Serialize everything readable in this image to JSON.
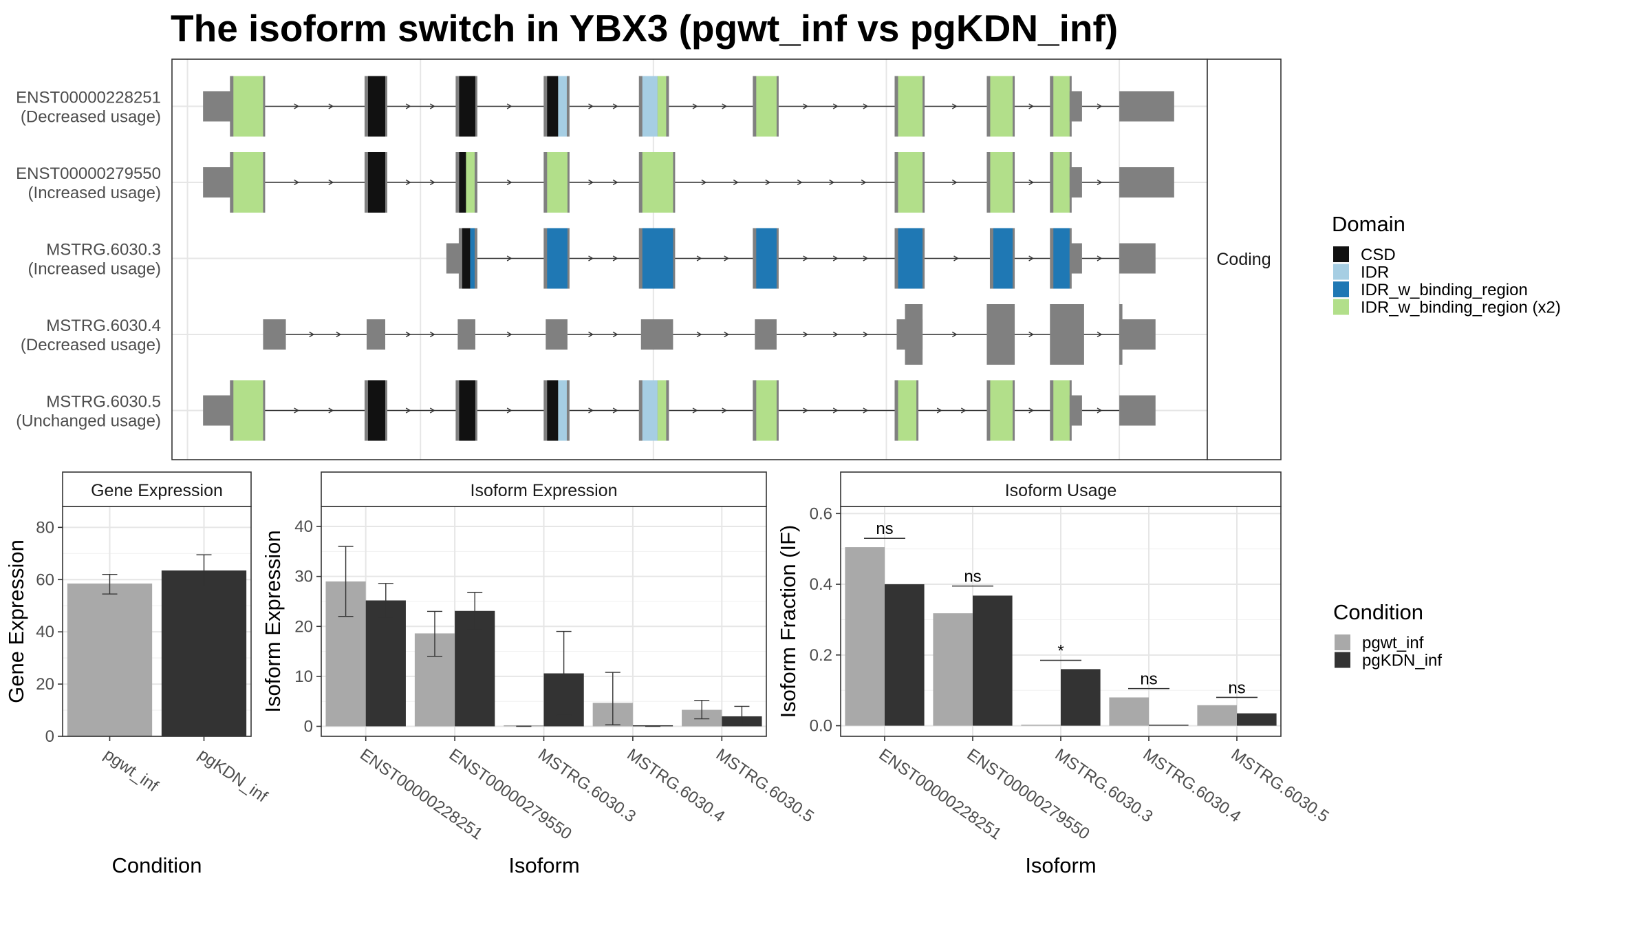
{
  "title": "The isoform switch in YBX3 (pgwt_inf vs pgKDN_inf)",
  "colors": {
    "exon_grey": "#808080",
    "CSD": "#111111",
    "IDR": "#a6cee3",
    "IDR_w_binding_region": "#1f78b4",
    "IDR_w_binding_region (x2)": "#b2df8a",
    "pgwt_inf": "#a9a9a9",
    "pgKDN_inf": "#333333"
  },
  "structure": {
    "facet_label": "Coding",
    "x_range": [
      0,
      1000
    ],
    "isoforms": [
      {
        "name": "ENST00000228251",
        "usage": "(Decreased usage)",
        "segments": [
          {
            "x0": 30,
            "x1": 58,
            "type": "utr"
          },
          {
            "x0": 58,
            "x1": 88,
            "type": "cds",
            "domain": "IDR_w_binding_region (x2)"
          },
          {
            "x0": 188,
            "x1": 206,
            "type": "cds",
            "domain": "CSD"
          },
          {
            "x0": 276,
            "x1": 293,
            "type": "cds",
            "domain": "CSD"
          },
          {
            "x0": 361,
            "x1": 382,
            "type": "cds",
            "domain": "CSD",
            "split": [
              373,
              "IDR"
            ]
          },
          {
            "x0": 453,
            "x1": 478,
            "type": "cds",
            "domain": "IDR",
            "split": [
              469,
              "IDR_w_binding_region (x2)"
            ]
          },
          {
            "x0": 563,
            "x1": 584,
            "type": "cds",
            "domain": "IDR_w_binding_region (x2)"
          },
          {
            "x0": 700,
            "x1": 725,
            "type": "cds",
            "domain": "IDR_w_binding_region (x2)"
          },
          {
            "x0": 789,
            "x1": 812,
            "type": "cds",
            "domain": "IDR_w_binding_region (x2)"
          },
          {
            "x0": 850,
            "x1": 867,
            "type": "cds",
            "domain": "IDR_w_binding_region (x2)"
          },
          {
            "x0": 867,
            "x1": 879,
            "type": "utr"
          },
          {
            "x0": 915,
            "x1": 968,
            "type": "utr"
          }
        ]
      },
      {
        "name": "ENST00000279550",
        "usage": "(Increased usage)",
        "segments": [
          {
            "x0": 30,
            "x1": 58,
            "type": "utr"
          },
          {
            "x0": 58,
            "x1": 88,
            "type": "cds",
            "domain": "IDR_w_binding_region (x2)"
          },
          {
            "x0": 188,
            "x1": 206,
            "type": "cds",
            "domain": "CSD"
          },
          {
            "x0": 276,
            "x1": 293,
            "type": "cds",
            "domain": "CSD",
            "split": [
              284,
              "IDR_w_binding_region (x2)"
            ]
          },
          {
            "x0": 361,
            "x1": 382,
            "type": "cds",
            "domain": "IDR_w_binding_region (x2)"
          },
          {
            "x0": 453,
            "x1": 484,
            "type": "cds",
            "domain": "IDR_w_binding_region (x2)"
          },
          {
            "x0": 700,
            "x1": 725,
            "type": "cds",
            "domain": "IDR_w_binding_region (x2)"
          },
          {
            "x0": 789,
            "x1": 812,
            "type": "cds",
            "domain": "IDR_w_binding_region (x2)"
          },
          {
            "x0": 850,
            "x1": 867,
            "type": "cds",
            "domain": "IDR_w_binding_region (x2)"
          },
          {
            "x0": 867,
            "x1": 879,
            "type": "utr"
          },
          {
            "x0": 915,
            "x1": 968,
            "type": "utr"
          }
        ]
      },
      {
        "name": "MSTRG.6030.3",
        "usage": "(Increased usage)",
        "segments": [
          {
            "x0": 265,
            "x1": 279,
            "type": "utr"
          },
          {
            "x0": 279,
            "x1": 293,
            "type": "cds",
            "domain": "CSD",
            "split": [
              288,
              "IDR_w_binding_region"
            ]
          },
          {
            "x0": 361,
            "x1": 382,
            "type": "cds",
            "domain": "IDR_w_binding_region"
          },
          {
            "x0": 453,
            "x1": 484,
            "type": "cds",
            "domain": "IDR_w_binding_region"
          },
          {
            "x0": 563,
            "x1": 584,
            "type": "cds",
            "domain": "IDR_w_binding_region"
          },
          {
            "x0": 700,
            "x1": 725,
            "type": "cds",
            "domain": "IDR_w_binding_region"
          },
          {
            "x0": 792,
            "x1": 812,
            "type": "cds",
            "domain": "IDR_w_binding_region"
          },
          {
            "x0": 850,
            "x1": 867,
            "type": "cds",
            "domain": "IDR_w_binding_region"
          },
          {
            "x0": 867,
            "x1": 879,
            "type": "utr"
          },
          {
            "x0": 915,
            "x1": 950,
            "type": "utr"
          }
        ]
      },
      {
        "name": "MSTRG.6030.4",
        "usage": "(Decreased usage)",
        "segments": [
          {
            "x0": 88,
            "x1": 110,
            "type": "utr"
          },
          {
            "x0": 188,
            "x1": 206,
            "type": "utr"
          },
          {
            "x0": 276,
            "x1": 293,
            "type": "utr"
          },
          {
            "x0": 361,
            "x1": 382,
            "type": "utr"
          },
          {
            "x0": 453,
            "x1": 484,
            "type": "utr"
          },
          {
            "x0": 563,
            "x1": 584,
            "type": "utr"
          },
          {
            "x0": 700,
            "x1": 725,
            "type": "utr",
            "tall_from": 708
          },
          {
            "x0": 789,
            "x1": 812,
            "type": "cds"
          },
          {
            "x0": 850,
            "x1": 879,
            "type": "cds"
          },
          {
            "x0": 915,
            "x1": 950,
            "type": "utr",
            "tall_to": 918
          }
        ]
      },
      {
        "name": "MSTRG.6030.5",
        "usage": "(Unchanged usage)",
        "segments": [
          {
            "x0": 30,
            "x1": 58,
            "type": "utr"
          },
          {
            "x0": 58,
            "x1": 88,
            "type": "cds",
            "domain": "IDR_w_binding_region (x2)"
          },
          {
            "x0": 188,
            "x1": 206,
            "type": "cds",
            "domain": "CSD"
          },
          {
            "x0": 276,
            "x1": 293,
            "type": "cds",
            "domain": "CSD"
          },
          {
            "x0": 361,
            "x1": 382,
            "type": "cds",
            "domain": "CSD",
            "split": [
              373,
              "IDR"
            ]
          },
          {
            "x0": 453,
            "x1": 478,
            "type": "cds",
            "domain": "IDR",
            "split": [
              469,
              "IDR_w_binding_region (x2)"
            ]
          },
          {
            "x0": 563,
            "x1": 584,
            "type": "cds",
            "domain": "IDR_w_binding_region (x2)"
          },
          {
            "x0": 700,
            "x1": 719,
            "type": "cds",
            "domain": "IDR_w_binding_region (x2)"
          },
          {
            "x0": 789,
            "x1": 812,
            "type": "cds",
            "domain": "IDR_w_binding_region (x2)"
          },
          {
            "x0": 850,
            "x1": 867,
            "type": "cds",
            "domain": "IDR_w_binding_region (x2)"
          },
          {
            "x0": 867,
            "x1": 879,
            "type": "utr"
          },
          {
            "x0": 915,
            "x1": 950,
            "type": "utr"
          }
        ]
      }
    ]
  },
  "legend_domain": {
    "title": "Domain",
    "items": [
      "CSD",
      "IDR",
      "IDR_w_binding_region",
      "IDR_w_binding_region (x2)"
    ]
  },
  "legend_condition": {
    "title": "Condition",
    "items": [
      "pgwt_inf",
      "pgKDN_inf"
    ]
  },
  "chart_data": [
    {
      "type": "bar",
      "strip": "Gene Expression",
      "xlabel": "Condition",
      "ylabel": "Gene Expression",
      "ylim": [
        0,
        88
      ],
      "yticks": [
        0,
        20,
        40,
        60,
        80
      ],
      "categories": [
        "pgwt_inf",
        "pgKDN_inf"
      ],
      "values": [
        58.5,
        63.5
      ],
      "errors": [
        [
          54.5,
          62
        ],
        [
          57.5,
          69.5
        ]
      ]
    },
    {
      "type": "bar",
      "strip": "Isoform Expression",
      "xlabel": "Isoform",
      "ylabel": "Isoform Expression",
      "ylim": [
        -2,
        44
      ],
      "yticks": [
        0,
        10,
        20,
        30,
        40
      ],
      "categories": [
        "ENST00000228251",
        "ENST00000279550",
        "MSTRG.6030.3",
        "MSTRG.6030.4",
        "MSTRG.6030.5"
      ],
      "series": [
        {
          "name": "pgwt_inf",
          "values": [
            29,
            18.6,
            0,
            4.7,
            3.3
          ],
          "errors": [
            [
              22,
              36
            ],
            [
              14,
              23
            ],
            [
              0,
              0
            ],
            [
              0.3,
              10.8
            ],
            [
              1.5,
              5.2
            ]
          ]
        },
        {
          "name": "pgKDN_inf",
          "values": [
            25.2,
            23.1,
            10.6,
            0,
            2
          ],
          "errors": [
            [
              21.8,
              28.6
            ],
            [
              19.3,
              26.8
            ],
            [
              2.2,
              19
            ],
            [
              0,
              0
            ],
            [
              0.3,
              4
            ]
          ]
        }
      ]
    },
    {
      "type": "bar",
      "strip": "Isoform Usage",
      "xlabel": "Isoform",
      "ylabel": "Isoform Fraction (IF)",
      "ylim": [
        -0.03,
        0.62
      ],
      "yticks": [
        "0.0",
        "0.2",
        "0.4",
        "0.6"
      ],
      "categories": [
        "ENST00000228251",
        "ENST00000279550",
        "MSTRG.6030.3",
        "MSTRG.6030.4",
        "MSTRG.6030.5"
      ],
      "series": [
        {
          "name": "pgwt_inf",
          "values": [
            0.505,
            0.318,
            0,
            0.08,
            0.058
          ]
        },
        {
          "name": "pgKDN_inf",
          "values": [
            0.4,
            0.368,
            0.16,
            0,
            0.035
          ]
        }
      ],
      "significance": [
        "ns",
        "ns",
        "*",
        "ns",
        "ns"
      ],
      "significance_y": [
        0.53,
        0.395,
        0.185,
        0.105,
        0.08
      ]
    }
  ]
}
